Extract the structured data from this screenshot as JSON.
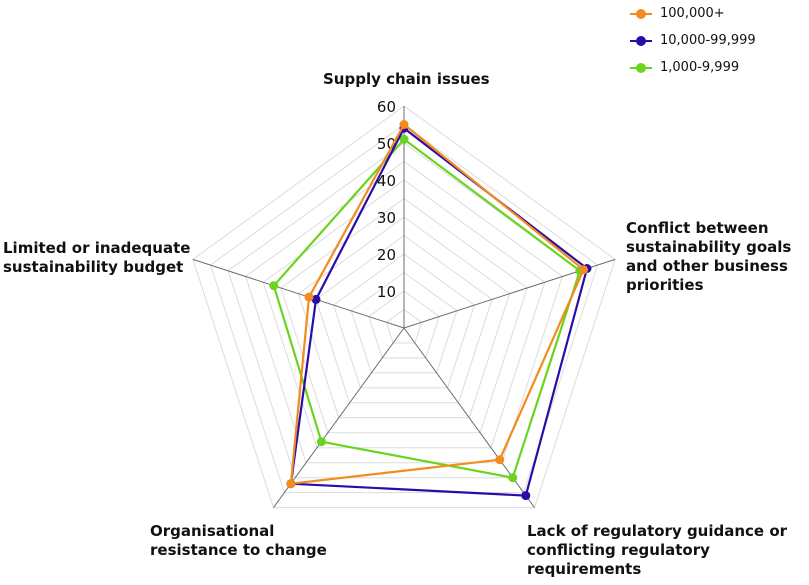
{
  "chart_data": {
    "type": "radar",
    "axes": [
      "Supply chain issues",
      "Conflict between\nsustainability goals\nand other business\npriorities",
      "Lack of regulatory guidance or\nconflicting regulatory\nrequirements",
      "Organisational\nresistance to change",
      "Limited or inadequate\nsustainability budget"
    ],
    "rlim": [
      0,
      60
    ],
    "ticks": [
      "10",
      "20",
      "30",
      "40",
      "50",
      "60"
    ],
    "tick_values": [
      10,
      20,
      30,
      40,
      50,
      60
    ],
    "grid": true,
    "legend_position": "top-right",
    "series": [
      {
        "name": "100,000+",
        "color": "#f28c1e",
        "values": [
          55,
          51,
          44,
          52,
          27
        ]
      },
      {
        "name": "10,000-99,999",
        "color": "#2a0ca8",
        "values": [
          54,
          52,
          56,
          52,
          25
        ]
      },
      {
        "name": "1,000-9,999",
        "color": "#6ad41e",
        "values": [
          51,
          50,
          50,
          38,
          37
        ]
      }
    ],
    "draw_order": [
      2,
      1,
      0
    ]
  }
}
